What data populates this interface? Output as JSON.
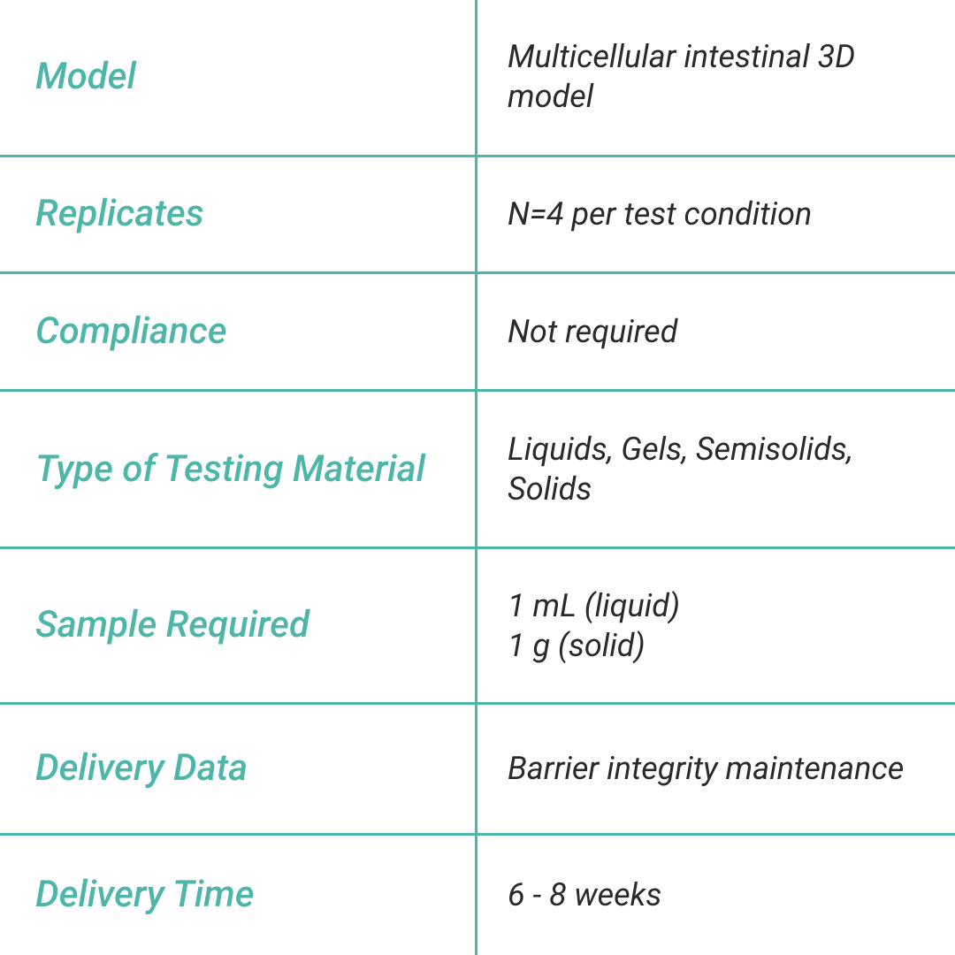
{
  "table": {
    "type": "table",
    "border_color": "#4db6a8",
    "border_width": 3,
    "background_color": "#ffffff",
    "label_color": "#4db6a8",
    "label_fontsize": 42,
    "label_font_style": "italic",
    "label_font_weight": 500,
    "value_color": "#2a2a2a",
    "value_fontsize": 36,
    "value_font_style": "italic",
    "value_font_weight": 400,
    "column_split": 0.5,
    "rows": [
      {
        "label": "Model",
        "value": "Multicellular intestinal 3D model",
        "row_grow": 1.15
      },
      {
        "label": "Replicates",
        "value": "N=4 per test condition",
        "row_grow": 0.95
      },
      {
        "label": "Compliance",
        "value": "Not required",
        "row_grow": 0.95
      },
      {
        "label": "Type of Testing Material",
        "value": "Liquids, Gels, Semisolids, Solids",
        "row_grow": 1.15
      },
      {
        "label": "Sample Required",
        "value": "1 mL (liquid)\n1 g (solid)",
        "row_grow": 1.1
      },
      {
        "label": "Delivery Data",
        "value": "Barrier integrity maintenance",
        "row_grow": 1.55
      },
      {
        "label": "Delivery Time",
        "value": "6 - 8 weeks",
        "row_grow": 1.15
      }
    ]
  }
}
